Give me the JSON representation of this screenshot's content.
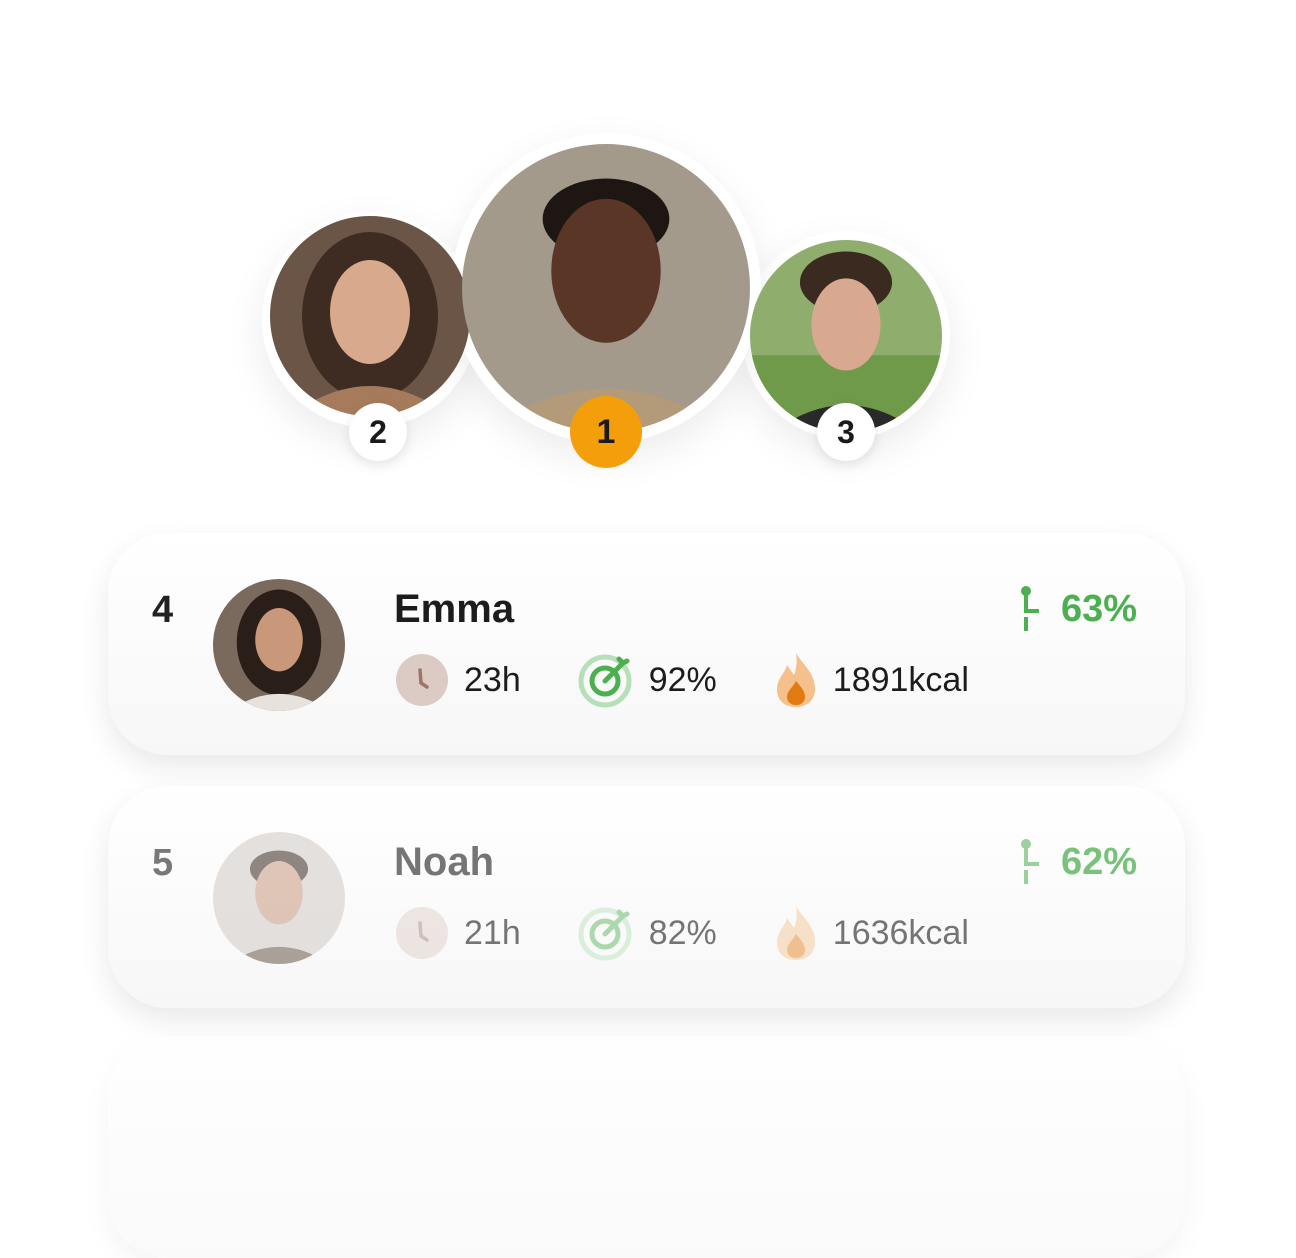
{
  "podium": [
    {
      "rank": "1",
      "badge_color": "#f59e0b"
    },
    {
      "rank": "2",
      "badge_color": "#ffffff"
    },
    {
      "rank": "3",
      "badge_color": "#ffffff"
    }
  ],
  "leaderboard": [
    {
      "rank": "4",
      "name": "Emma",
      "time": "23h",
      "goal": "92%",
      "calories": "1891kcal",
      "score": "63%"
    },
    {
      "rank": "5",
      "name": "Noah",
      "time": "21h",
      "goal": "82%",
      "calories": "1636kcal",
      "score": "62%"
    }
  ],
  "colors": {
    "accent_orange": "#f59e0b",
    "score_green": "#4caf50",
    "clock": "#d9c5bd",
    "flame": "#f0a060"
  },
  "icons": [
    "clock-icon",
    "target-icon",
    "flame-icon",
    "progress-pin-icon"
  ]
}
